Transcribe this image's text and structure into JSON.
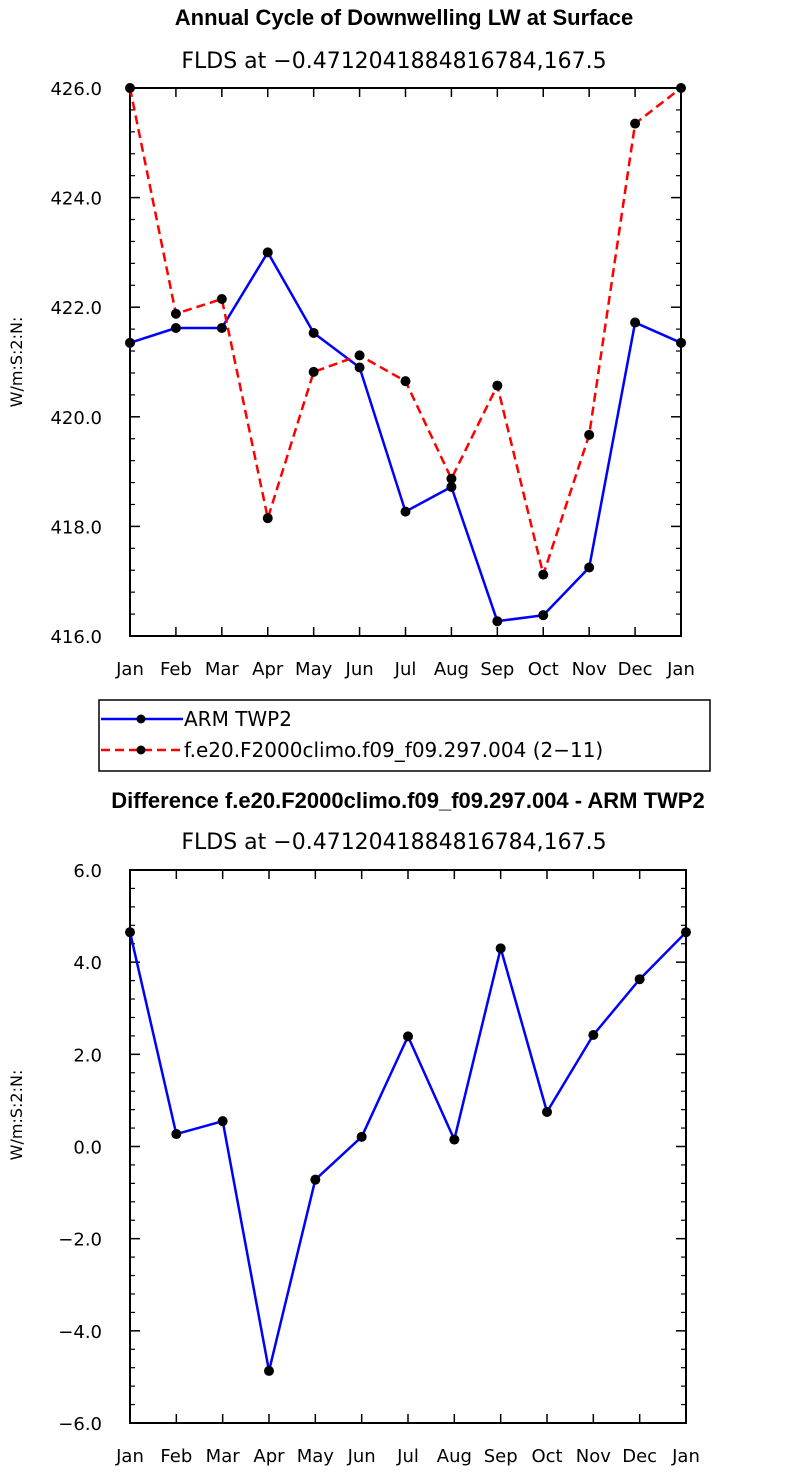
{
  "chart_data": [
    {
      "type": "line",
      "title": "Annual Cycle of Downwelling LW at Surface",
      "subtitle": "FLDS at −0.4712041884816784,167.5",
      "ylabel": "W/m:S:2:N:",
      "xlabel": "",
      "categories": [
        "Jan",
        "Feb",
        "Mar",
        "Apr",
        "May",
        "Jun",
        "Jul",
        "Aug",
        "Sep",
        "Oct",
        "Nov",
        "Dec",
        "Jan"
      ],
      "ylim": [
        416.0,
        426.0
      ],
      "yticks": [
        "416.0",
        "418.0",
        "420.0",
        "422.0",
        "424.0",
        "426.0"
      ],
      "series": [
        {
          "name": "ARM TWP2",
          "color": "#0000ff",
          "dash": "solid",
          "values": [
            421.35,
            421.62,
            421.62,
            423.0,
            421.53,
            420.9,
            418.27,
            418.72,
            416.27,
            416.38,
            417.25,
            421.72,
            421.35
          ]
        },
        {
          "name": "f.e20.F2000climo.f09_f09.297.004 (2−11)",
          "color": "#ff0000",
          "dash": "dashed",
          "values": [
            426.0,
            421.88,
            422.15,
            418.15,
            420.82,
            421.12,
            420.65,
            418.87,
            420.57,
            417.12,
            419.67,
            425.35,
            426.0
          ]
        }
      ]
    },
    {
      "type": "line",
      "title": "Difference f.e20.F2000climo.f09_f09.297.004 - ARM TWP2",
      "subtitle": "FLDS at −0.4712041884816784,167.5",
      "ylabel": "W/m:S:2:N:",
      "xlabel": "",
      "categories": [
        "Jan",
        "Feb",
        "Mar",
        "Apr",
        "May",
        "Jun",
        "Jul",
        "Aug",
        "Sep",
        "Oct",
        "Nov",
        "Dec",
        "Jan"
      ],
      "ylim": [
        -6.0,
        6.0
      ],
      "yticks": [
        "−6.0",
        "−4.0",
        "−2.0",
        "0.0",
        "2.0",
        "4.0",
        "6.0"
      ],
      "series": [
        {
          "name": "Difference",
          "color": "#0000ff",
          "dash": "solid",
          "values": [
            4.65,
            0.27,
            0.55,
            -4.87,
            -0.72,
            0.21,
            2.39,
            0.15,
            4.3,
            0.75,
            2.42,
            3.63,
            4.65
          ]
        }
      ]
    }
  ]
}
